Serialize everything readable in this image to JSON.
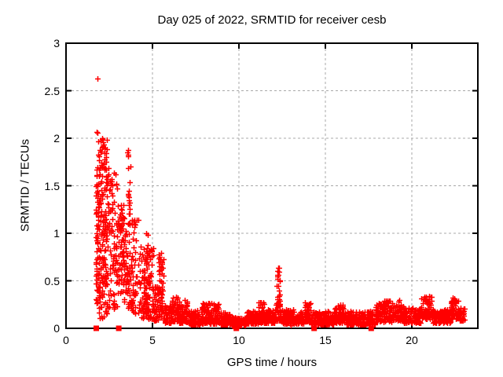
{
  "chart_data": {
    "type": "scatter",
    "title": "Day 025 of 2022, SRMTID for receiver cesb",
    "xlabel": "GPS time / hours",
    "ylabel": "SRMTID / TECUs",
    "xlim": [
      0,
      23.82
    ],
    "ylim": [
      0,
      3
    ],
    "x_ticks": [
      0,
      5,
      10,
      15,
      20
    ],
    "y_ticks": [
      0,
      0.5,
      1,
      1.5,
      2,
      2.5,
      3
    ],
    "grid": true,
    "legend": "none",
    "marker": "plus",
    "marker_color": "#ff0000",
    "grid_color": "#a8a8a8",
    "border_color": "#000000",
    "seed": 1337,
    "notable_points": [
      [
        1.82,
        2.63
      ],
      [
        1.78,
        2.07
      ],
      [
        1.84,
        2.06
      ],
      [
        2.08,
        2.0
      ],
      [
        1.86,
        1.97
      ],
      [
        3.6,
        1.88
      ],
      [
        5.5,
        0.79
      ],
      [
        12.28,
        0.64
      ],
      [
        12.95,
        0.05
      ],
      [
        13.02,
        0.03
      ],
      [
        13.08,
        0.05
      ]
    ],
    "zero_markers": [
      1.75,
      3.05,
      9.85,
      14.35,
      17.65
    ],
    "clusters": [
      [
        1.7,
        1.98,
        0.25,
        1.95,
        85,
        1.0
      ],
      [
        1.75,
        2.4,
        0.1,
        0.45,
        25,
        1.0
      ],
      [
        1.98,
        2.4,
        0.45,
        2.0,
        120,
        1.0
      ],
      [
        2.4,
        2.95,
        0.5,
        1.72,
        70,
        1.0
      ],
      [
        2.4,
        2.95,
        0.2,
        0.5,
        18,
        1.0
      ],
      [
        2.95,
        3.35,
        0.35,
        1.3,
        70,
        1.0
      ],
      [
        3.35,
        3.55,
        0.25,
        1.05,
        30,
        1.0
      ],
      [
        3.55,
        3.72,
        0.75,
        1.88,
        28,
        1.0
      ],
      [
        3.55,
        3.8,
        0.2,
        0.75,
        25,
        1.0
      ],
      [
        3.8,
        4.35,
        0.15,
        1.15,
        60,
        1.2
      ],
      [
        4.35,
        5.05,
        0.1,
        0.85,
        110,
        1.5
      ],
      [
        4.55,
        4.78,
        0.55,
        1.02,
        16,
        1.0
      ],
      [
        5.05,
        5.35,
        0.08,
        0.45,
        40,
        1.3
      ],
      [
        5.35,
        5.65,
        0.12,
        0.8,
        55,
        1.1
      ],
      [
        5.65,
        6.1,
        0.06,
        0.25,
        55,
        1.5
      ],
      [
        6.1,
        6.55,
        0.07,
        0.33,
        55,
        1.6
      ],
      [
        6.55,
        7.1,
        0.06,
        0.3,
        65,
        1.6
      ],
      [
        7.1,
        7.75,
        0.04,
        0.2,
        80,
        1.5
      ],
      [
        7.75,
        8.9,
        0.05,
        0.27,
        140,
        1.6
      ],
      [
        8.9,
        9.6,
        0.04,
        0.17,
        85,
        1.5
      ],
      [
        9.6,
        10.4,
        0.02,
        0.12,
        95,
        1.3
      ],
      [
        10.4,
        11.1,
        0.05,
        0.18,
        85,
        1.4
      ],
      [
        11.1,
        11.5,
        0.06,
        0.28,
        50,
        1.6
      ],
      [
        11.5,
        12.05,
        0.06,
        0.2,
        65,
        1.5
      ],
      [
        12.05,
        12.45,
        0.08,
        0.25,
        50,
        1.5
      ],
      [
        12.18,
        12.38,
        0.22,
        0.64,
        26,
        1.0
      ],
      [
        12.45,
        13.3,
        0.05,
        0.2,
        100,
        1.5
      ],
      [
        13.3,
        13.8,
        0.05,
        0.17,
        60,
        1.5
      ],
      [
        13.8,
        14.15,
        0.07,
        0.28,
        45,
        1.5
      ],
      [
        14.15,
        15.5,
        0.04,
        0.18,
        160,
        1.5
      ],
      [
        15.5,
        16.1,
        0.06,
        0.25,
        70,
        1.5
      ],
      [
        16.1,
        17.9,
        0.04,
        0.18,
        215,
        1.5
      ],
      [
        17.9,
        18.8,
        0.07,
        0.3,
        110,
        1.5
      ],
      [
        18.8,
        19.5,
        0.08,
        0.3,
        85,
        1.5
      ],
      [
        19.5,
        20.5,
        0.06,
        0.22,
        120,
        1.5
      ],
      [
        20.5,
        21.2,
        0.1,
        0.34,
        85,
        1.5
      ],
      [
        21.2,
        22.25,
        0.06,
        0.2,
        125,
        1.5
      ],
      [
        22.25,
        22.75,
        0.1,
        0.33,
        60,
        1.4
      ],
      [
        22.75,
        23.05,
        0.08,
        0.22,
        35,
        1.5
      ]
    ]
  }
}
